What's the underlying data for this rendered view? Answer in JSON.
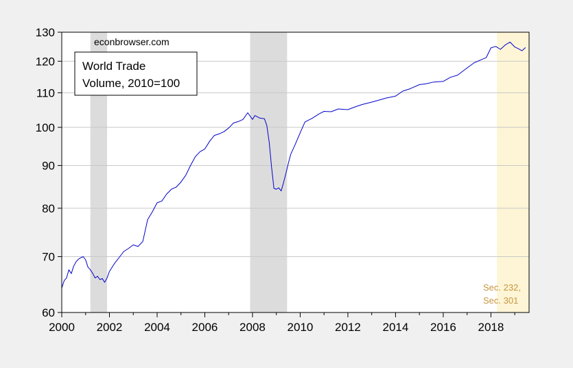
{
  "chart_data": {
    "type": "line",
    "y_scale": "log",
    "ylim": [
      60,
      130
    ],
    "xlim": [
      2000.0,
      2019.6
    ],
    "yticks": [
      60,
      70,
      80,
      90,
      100,
      110,
      120,
      130
    ],
    "xticks": [
      2000,
      2002,
      2004,
      2006,
      2008,
      2010,
      2012,
      2014,
      2016,
      2018
    ],
    "grid": "horizontal",
    "source_label": "econbrowser.com",
    "legend": {
      "lines": [
        "World Trade",
        "Volume, 2010=100"
      ],
      "placement": "top-left"
    },
    "annotation": {
      "lines": [
        "Sec. 232,",
        "Sec. 301"
      ],
      "color": "#c8963e"
    },
    "shaded_periods": [
      {
        "start": 2001.2,
        "end": 2001.9,
        "color": "#dcdcdc",
        "label": ""
      },
      {
        "start": 2007.9,
        "end": 2009.45,
        "color": "#dcdcdc",
        "label": ""
      },
      {
        "start": 2018.25,
        "end": 2019.6,
        "color": "#fdf5d6",
        "label": "Sec. 232, Sec. 301"
      }
    ],
    "colors": {
      "line": "#0000cc",
      "grid": "#c8c8c8"
    },
    "series": [
      {
        "x": [
          2000.0,
          2000.1,
          2000.2,
          2000.3,
          2000.4,
          2000.5,
          2000.6,
          2000.7,
          2000.8,
          2000.9,
          2001.0,
          2001.1,
          2001.2,
          2001.3,
          2001.4,
          2001.5,
          2001.6,
          2001.7,
          2001.8,
          2001.9,
          2002.0,
          2002.2,
          2002.4,
          2002.6,
          2002.8,
          2003.0,
          2003.2,
          2003.4,
          2003.6,
          2003.8,
          2004.0,
          2004.2,
          2004.4,
          2004.6,
          2004.8,
          2005.0,
          2005.2,
          2005.4,
          2005.6,
          2005.8,
          2006.0,
          2006.2,
          2006.4,
          2006.6,
          2006.8,
          2007.0,
          2007.2,
          2007.4,
          2007.6,
          2007.8,
          2008.0,
          2008.1,
          2008.3,
          2008.5,
          2008.6,
          2008.7,
          2008.8,
          2008.9,
          2009.0,
          2009.1,
          2009.2,
          2009.3,
          2009.4,
          2009.5,
          2009.6,
          2009.8,
          2010.0,
          2010.2,
          2010.5,
          2010.8,
          2011.0,
          2011.3,
          2011.6,
          2012.0,
          2012.3,
          2012.6,
          2013.0,
          2013.3,
          2013.6,
          2014.0,
          2014.3,
          2014.6,
          2015.0,
          2015.3,
          2015.6,
          2016.0,
          2016.3,
          2016.6,
          2017.0,
          2017.3,
          2017.6,
          2017.8,
          2018.0,
          2018.2,
          2018.4,
          2018.6,
          2018.8,
          2019.0,
          2019.15,
          2019.3,
          2019.45
        ],
        "y": [
          64.2,
          65.5,
          66.0,
          67.5,
          66.8,
          68.2,
          69.0,
          69.5,
          69.8,
          70.0,
          69.4,
          68.0,
          67.5,
          66.8,
          66.0,
          66.3,
          65.7,
          65.9,
          65.2,
          66.0,
          67.2,
          68.6,
          69.8,
          71.0,
          71.6,
          72.3,
          72.0,
          73.0,
          77.5,
          79.2,
          81.2,
          81.6,
          83.2,
          84.3,
          84.8,
          86.0,
          87.6,
          90.0,
          92.2,
          93.5,
          94.2,
          96.2,
          97.8,
          98.2,
          98.8,
          99.8,
          101.2,
          101.6,
          102.2,
          104.1,
          102.2,
          103.3,
          102.6,
          102.4,
          100.5,
          96.0,
          89.5,
          84.5,
          84.3,
          84.6,
          83.9,
          85.8,
          88.0,
          90.5,
          92.8,
          95.5,
          98.5,
          101.5,
          102.5,
          103.8,
          104.5,
          104.4,
          105.2,
          105.0,
          105.8,
          106.5,
          107.2,
          107.8,
          108.4,
          109.0,
          110.5,
          111.2,
          112.5,
          112.8,
          113.3,
          113.5,
          114.8,
          115.5,
          117.8,
          119.5,
          120.5,
          121.2,
          124.5,
          125.0,
          124.0,
          125.5,
          126.5,
          124.8,
          124.2,
          123.5,
          124.6
        ]
      }
    ]
  }
}
